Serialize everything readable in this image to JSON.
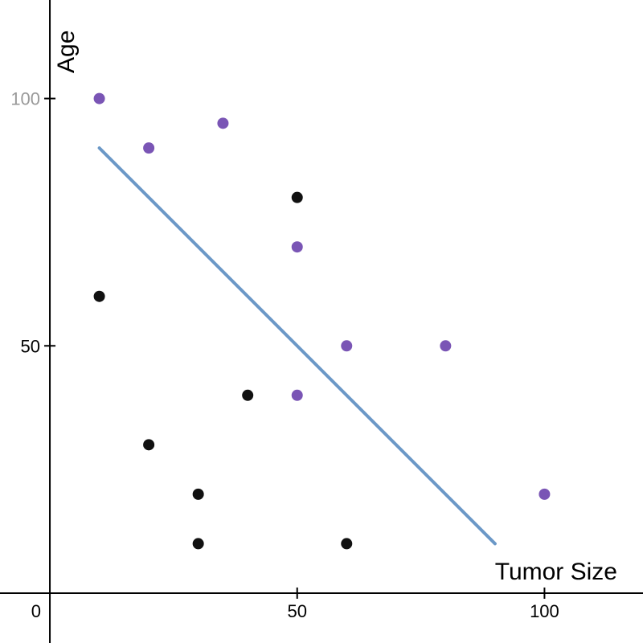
{
  "chart_data": {
    "type": "scatter",
    "title": "",
    "xlabel": "Tumor Size",
    "ylabel": "Age",
    "xlim": [
      -10,
      120
    ],
    "ylim": [
      -10,
      120
    ],
    "origin_label": "0",
    "x_ticks": [
      {
        "value": 50,
        "label": "50"
      },
      {
        "value": 100,
        "label": "100"
      }
    ],
    "y_ticks": [
      {
        "value": 50,
        "label": "50"
      },
      {
        "value": 100,
        "label": "100"
      }
    ],
    "grid": false,
    "legend": "none",
    "series": [
      {
        "color": "#7a55b5",
        "points": [
          {
            "x": 10,
            "y": 100
          },
          {
            "x": 20,
            "y": 90
          },
          {
            "x": 35,
            "y": 95
          },
          {
            "x": 50,
            "y": 70
          },
          {
            "x": 60,
            "y": 50
          },
          {
            "x": 80,
            "y": 50
          },
          {
            "x": 50,
            "y": 40
          },
          {
            "x": 100,
            "y": 20
          }
        ]
      },
      {
        "color": "#111111",
        "points": [
          {
            "x": 50,
            "y": 80
          },
          {
            "x": 10,
            "y": 60
          },
          {
            "x": 40,
            "y": 40
          },
          {
            "x": 20,
            "y": 30
          },
          {
            "x": 30,
            "y": 20
          },
          {
            "x": 30,
            "y": 10
          },
          {
            "x": 60,
            "y": 10
          }
        ]
      }
    ],
    "lines": [
      {
        "color": "#6b98c7",
        "from": {
          "x": 10,
          "y": 90
        },
        "to": {
          "x": 90,
          "y": 10
        }
      }
    ],
    "colors": {
      "axis": "#000000",
      "tick_label": "#000000",
      "muted_tick_label": "#999999"
    }
  }
}
